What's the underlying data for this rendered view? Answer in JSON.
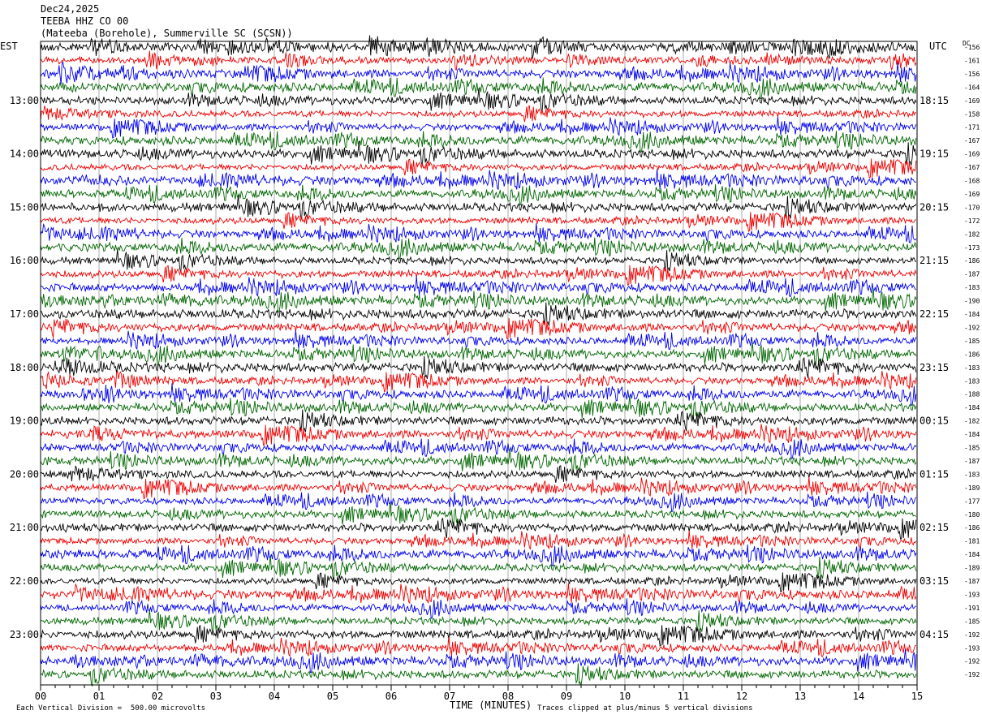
{
  "header": {
    "date": "Dec24,2025",
    "station": "TEEBA HHZ CO 00",
    "location": "(Mateeba (Borehole), Summerville SC (SCSN))"
  },
  "left_tz": "EST",
  "right_tz": "UTC",
  "dc_label": "DC",
  "footer": {
    "scale": "Each Vertical Division =  500.00 microvolts",
    "clip": "Traces clipped at plus/minus 5 vertical divisions"
  },
  "chart_data": {
    "type": "line",
    "xlabel": "TIME (MINUTES)",
    "xlim": [
      0,
      15
    ],
    "x_ticks": [
      "00",
      "01",
      "02",
      "03",
      "04",
      "05",
      "06",
      "07",
      "08",
      "09",
      "10",
      "11",
      "12",
      "13",
      "14",
      "15"
    ],
    "left_hour_labels": [
      "13:00",
      "14:00",
      "15:00",
      "16:00",
      "17:00",
      "18:00",
      "19:00",
      "20:00",
      "21:00",
      "22:00",
      "23:00"
    ],
    "right_hour_labels": [
      "18:15",
      "19:15",
      "20:15",
      "21:15",
      "22:15",
      "23:15",
      "00:15",
      "01:15",
      "02:15",
      "03:15",
      "04:15"
    ],
    "trace_colors": [
      "#000000",
      "#ee0000",
      "#0000ee",
      "#006600"
    ],
    "dc_offsets": [
      "-156",
      "-161",
      "-156",
      "-164",
      "-169",
      "-158",
      "-171",
      "-167",
      "-169",
      "-167",
      "-168",
      "-169",
      "-170",
      "-172",
      "-182",
      "-173",
      "-186",
      "-187",
      "-183",
      "-190",
      "-184",
      "-192",
      "-185",
      "-186",
      "-183",
      "-183",
      "-188",
      "-184",
      "-182",
      "-184",
      "-185",
      "-187",
      "-183",
      "-189",
      "-177",
      "-180",
      "-186",
      "-181",
      "-184",
      "-189",
      "-187",
      "-193",
      "-191",
      "-185",
      "-192",
      "-193",
      "-192",
      "-192"
    ]
  }
}
